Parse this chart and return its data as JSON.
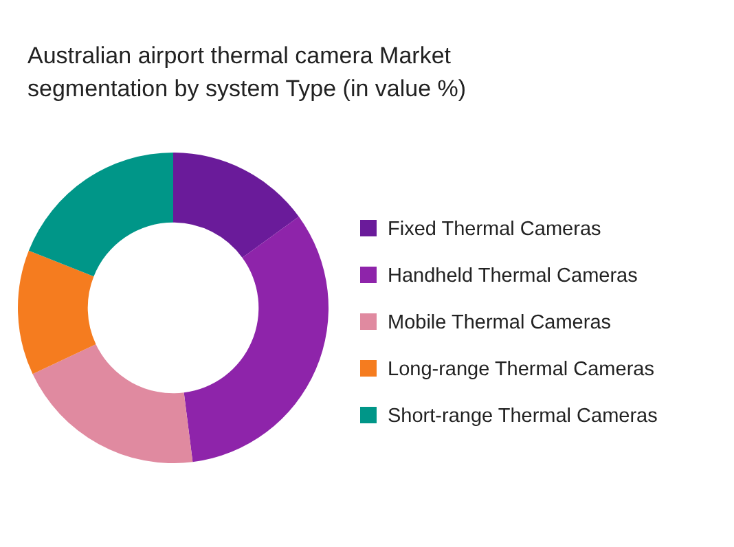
{
  "chart_data": {
    "type": "donut",
    "title": "Australian airport thermal camera Market segmentation by system Type (in value %)",
    "categories": [
      "Fixed Thermal Cameras",
      "Handheld Thermal Cameras",
      "Mobile Thermal Cameras",
      "Long-range Thermal Cameras",
      "Short-range Thermal Cameras"
    ],
    "values": [
      15,
      33,
      20,
      13,
      19
    ],
    "colors": [
      "#6a1b9a",
      "#8e24aa",
      "#e08aa0",
      "#f57c1f",
      "#009688"
    ],
    "legend": "right"
  }
}
